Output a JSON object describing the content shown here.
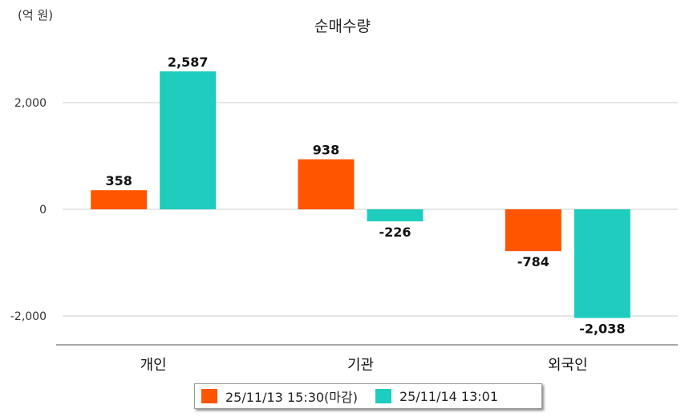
{
  "chart_data": {
    "type": "bar",
    "title": "순매수량",
    "unit_label": "(억 원)",
    "categories": [
      "개인",
      "기관",
      "외국인"
    ],
    "series": [
      {
        "name": "25/11/13 15:30(마감)",
        "color": "#ff5500",
        "values": [
          358,
          938,
          -784
        ],
        "labels": [
          "358",
          "938",
          "-784"
        ]
      },
      {
        "name": "25/11/14 13:01",
        "color": "#1ecdbd",
        "values": [
          2587,
          -226,
          -2038
        ],
        "labels": [
          "2,587",
          "-226",
          "-2,038"
        ]
      }
    ],
    "yticks": [
      2000,
      0,
      -2000
    ],
    "ytick_labels": [
      "2,000",
      "0",
      "-2,000"
    ],
    "ylim": [
      -2500,
      3100
    ],
    "grid": true,
    "legend_position": "bottom"
  }
}
